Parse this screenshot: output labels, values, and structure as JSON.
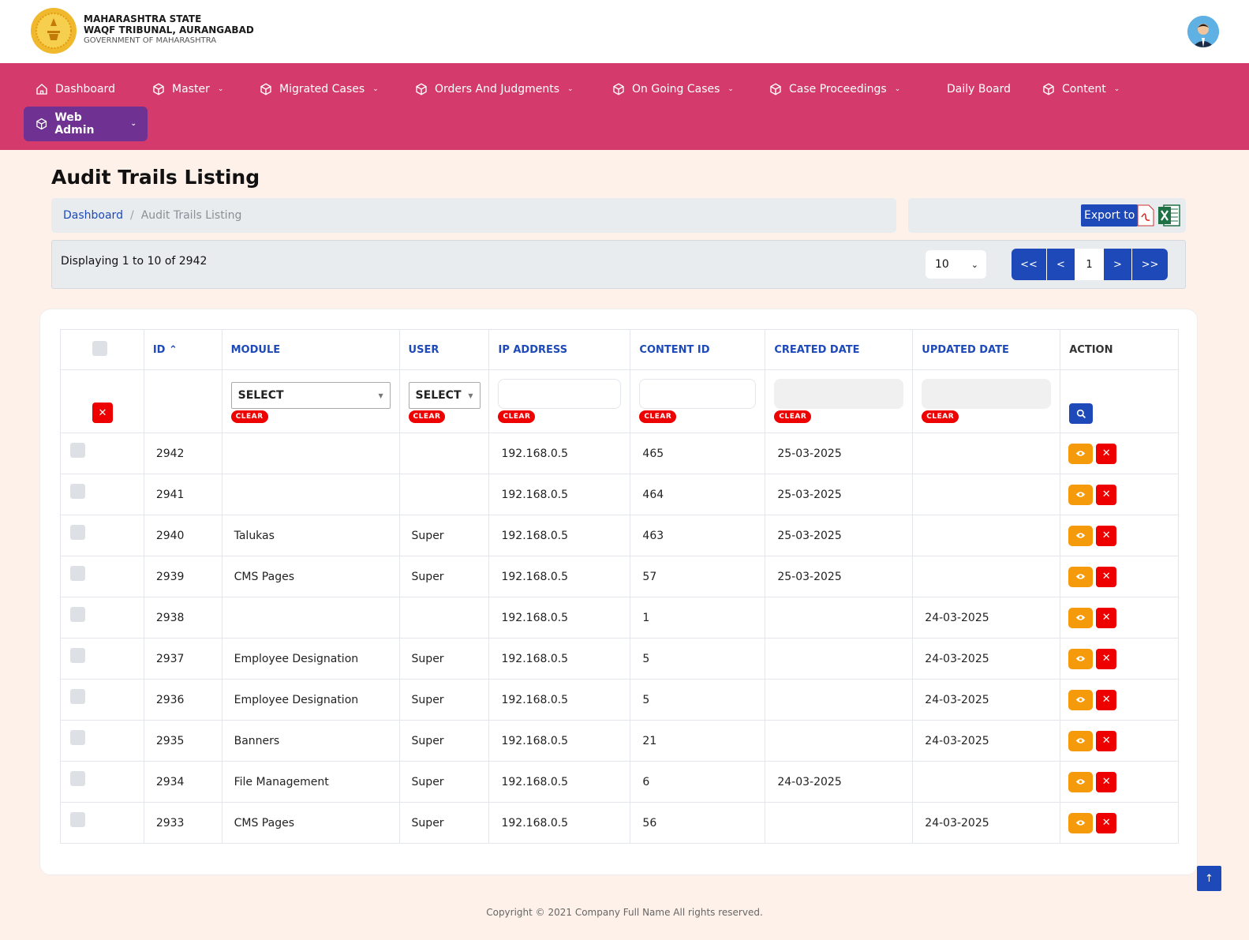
{
  "header": {
    "line1": "MAHARASHTRA STATE",
    "line2": "WAQF TRIBUNAL, AURANGABAD",
    "line3": "GOVERNMENT OF MAHARASHTRA"
  },
  "nav": {
    "items": [
      {
        "label": "Dashboard"
      },
      {
        "label": "Master"
      },
      {
        "label": "Migrated Cases"
      },
      {
        "label": "Orders And Judgments"
      },
      {
        "label": "On Going Cases"
      },
      {
        "label": "Case Proceedings"
      },
      {
        "label": "Daily Board"
      },
      {
        "label": "Content"
      },
      {
        "label": "Web Admin"
      }
    ]
  },
  "page": {
    "title": "Audit Trails Listing",
    "breadcrumb": [
      "Dashboard",
      "Audit Trails Listing"
    ],
    "export_label": "Export to"
  },
  "pager": {
    "display_text": "Displaying 1 to 10 of 2942",
    "per_page": "10",
    "first": "<<",
    "prev": "<",
    "current": "1",
    "next": ">",
    "last": ">>"
  },
  "table": {
    "headers": [
      "ID",
      "MODULE",
      "USER",
      "IP ADDRESS",
      "CONTENT ID",
      "CREATED DATE",
      "UPDATED DATE",
      "ACTION"
    ],
    "filters": {
      "module_select": "SELECT",
      "user_select": "SELECT",
      "clear": "CLEAR"
    },
    "rows": [
      {
        "id": "2942",
        "module": "",
        "user": "",
        "ip": "192.168.0.5",
        "content_id": "465",
        "created": "25-03-2025",
        "updated": ""
      },
      {
        "id": "2941",
        "module": "",
        "user": "",
        "ip": "192.168.0.5",
        "content_id": "464",
        "created": "25-03-2025",
        "updated": ""
      },
      {
        "id": "2940",
        "module": "Talukas",
        "user": "Super",
        "ip": "192.168.0.5",
        "content_id": "463",
        "created": "25-03-2025",
        "updated": ""
      },
      {
        "id": "2939",
        "module": "CMS Pages",
        "user": "Super",
        "ip": "192.168.0.5",
        "content_id": "57",
        "created": "25-03-2025",
        "updated": ""
      },
      {
        "id": "2938",
        "module": "",
        "user": "",
        "ip": "192.168.0.5",
        "content_id": "1",
        "created": "",
        "updated": "24-03-2025"
      },
      {
        "id": "2937",
        "module": "Employee Designation",
        "user": "Super",
        "ip": "192.168.0.5",
        "content_id": "5",
        "created": "",
        "updated": "24-03-2025"
      },
      {
        "id": "2936",
        "module": "Employee Designation",
        "user": "Super",
        "ip": "192.168.0.5",
        "content_id": "5",
        "created": "",
        "updated": "24-03-2025"
      },
      {
        "id": "2935",
        "module": "Banners",
        "user": "Super",
        "ip": "192.168.0.5",
        "content_id": "21",
        "created": "",
        "updated": "24-03-2025"
      },
      {
        "id": "2934",
        "module": "File Management",
        "user": "Super",
        "ip": "192.168.0.5",
        "content_id": "6",
        "created": "24-03-2025",
        "updated": ""
      },
      {
        "id": "2933",
        "module": "CMS Pages",
        "user": "Super",
        "ip": "192.168.0.5",
        "content_id": "56",
        "created": "",
        "updated": "24-03-2025"
      }
    ]
  },
  "footer": {
    "text": "Copyright © 2021 Company Full Name All rights reserved."
  },
  "colors": {
    "nav_bg": "#d43a6c",
    "active_nav": "#6f3192",
    "primary": "#1d4ab8",
    "danger": "#ee0000",
    "warning": "#f59a0b",
    "page_bg": "#fdf1e9"
  },
  "icons": {
    "nav": "cube-icon",
    "dashboard": "home-icon",
    "view": "eye-icon",
    "delete": "close-icon",
    "search": "search-icon",
    "to_top": "arrow-up-icon"
  }
}
